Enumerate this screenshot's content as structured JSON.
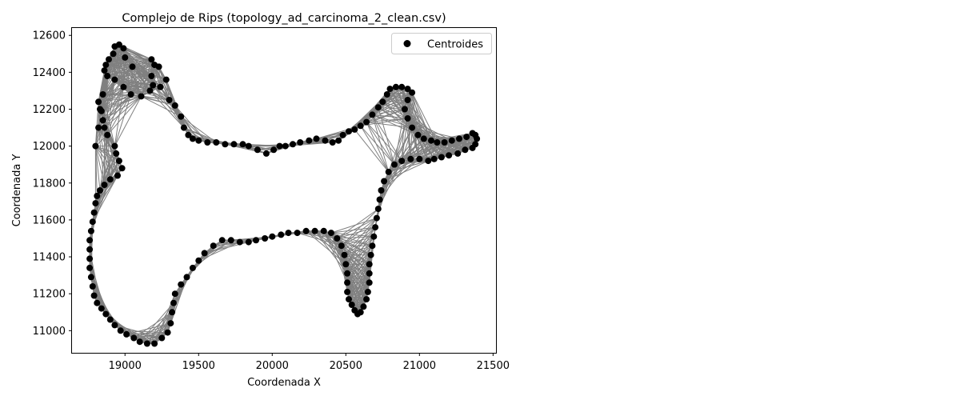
{
  "chart_data": {
    "type": "scatter",
    "title": "Complejo de Rips (topology_ad_carcinoma_2_clean.csv)",
    "xlabel": "Coordenada X",
    "ylabel": "Coordenada Y",
    "xlim": [
      18640,
      21520
    ],
    "ylim": [
      10880,
      12640
    ],
    "xticks": [
      19000,
      19500,
      20000,
      20500,
      21000,
      21500
    ],
    "yticks": [
      11000,
      11200,
      11400,
      11600,
      11800,
      12000,
      12200,
      12400,
      12600
    ],
    "grid": false,
    "legend": {
      "position": "top-right",
      "entries": [
        "Centroides"
      ]
    },
    "colors": {
      "points": "#000000",
      "edges": "#808080"
    },
    "series": [
      {
        "name": "Centroides",
        "points": [
          [
            18930,
            12540
          ],
          [
            18960,
            12550
          ],
          [
            18990,
            12530
          ],
          [
            18920,
            12500
          ],
          [
            18890,
            12470
          ],
          [
            18870,
            12440
          ],
          [
            18860,
            12410
          ],
          [
            18880,
            12380
          ],
          [
            18930,
            12360
          ],
          [
            18990,
            12320
          ],
          [
            19040,
            12280
          ],
          [
            19110,
            12270
          ],
          [
            19170,
            12300
          ],
          [
            19190,
            12330
          ],
          [
            19180,
            12380
          ],
          [
            19200,
            12440
          ],
          [
            19230,
            12430
          ],
          [
            19180,
            12470
          ],
          [
            19050,
            12430
          ],
          [
            19000,
            12480
          ],
          [
            19280,
            12360
          ],
          [
            19240,
            12320
          ],
          [
            19300,
            12250
          ],
          [
            19340,
            12220
          ],
          [
            19380,
            12160
          ],
          [
            19400,
            12100
          ],
          [
            19430,
            12060
          ],
          [
            19460,
            12040
          ],
          [
            19500,
            12030
          ],
          [
            19560,
            12020
          ],
          [
            19620,
            12020
          ],
          [
            19680,
            12010
          ],
          [
            19740,
            12010
          ],
          [
            19800,
            12010
          ],
          [
            19840,
            12000
          ],
          [
            19900,
            11980
          ],
          [
            19960,
            11960
          ],
          [
            20010,
            11980
          ],
          [
            20050,
            12000
          ],
          [
            20090,
            12000
          ],
          [
            20140,
            12010
          ],
          [
            20190,
            12020
          ],
          [
            20250,
            12030
          ],
          [
            20300,
            12040
          ],
          [
            20360,
            12030
          ],
          [
            20410,
            12020
          ],
          [
            20450,
            12030
          ],
          [
            20480,
            12060
          ],
          [
            20520,
            12080
          ],
          [
            20560,
            12090
          ],
          [
            20600,
            12110
          ],
          [
            20640,
            12130
          ],
          [
            20680,
            12170
          ],
          [
            20720,
            12210
          ],
          [
            20750,
            12240
          ],
          [
            20780,
            12280
          ],
          [
            20800,
            12310
          ],
          [
            20840,
            12320
          ],
          [
            20880,
            12320
          ],
          [
            20920,
            12310
          ],
          [
            20950,
            12290
          ],
          [
            20920,
            12250
          ],
          [
            20900,
            12200
          ],
          [
            20920,
            12150
          ],
          [
            20950,
            12100
          ],
          [
            20990,
            12060
          ],
          [
            21030,
            12040
          ],
          [
            21080,
            12030
          ],
          [
            21120,
            12020
          ],
          [
            21170,
            12020
          ],
          [
            21220,
            12030
          ],
          [
            21270,
            12040
          ],
          [
            21320,
            12050
          ],
          [
            21360,
            12070
          ],
          [
            21380,
            12060
          ],
          [
            21390,
            12040
          ],
          [
            21380,
            12010
          ],
          [
            21360,
            11990
          ],
          [
            21310,
            11980
          ],
          [
            21260,
            11960
          ],
          [
            21200,
            11950
          ],
          [
            21150,
            11940
          ],
          [
            21100,
            11930
          ],
          [
            21060,
            11920
          ],
          [
            21000,
            11930
          ],
          [
            20940,
            11930
          ],
          [
            20880,
            11920
          ],
          [
            20830,
            11900
          ],
          [
            20790,
            11860
          ],
          [
            20760,
            11810
          ],
          [
            20740,
            11760
          ],
          [
            20730,
            11710
          ],
          [
            20720,
            11660
          ],
          [
            20710,
            11610
          ],
          [
            20700,
            11560
          ],
          [
            20690,
            11510
          ],
          [
            20680,
            11460
          ],
          [
            20670,
            11410
          ],
          [
            20660,
            11360
          ],
          [
            20660,
            11310
          ],
          [
            20660,
            11260
          ],
          [
            20650,
            11210
          ],
          [
            20640,
            11170
          ],
          [
            20620,
            11130
          ],
          [
            20600,
            11100
          ],
          [
            20580,
            11090
          ],
          [
            20560,
            11110
          ],
          [
            20540,
            11140
          ],
          [
            20520,
            11170
          ],
          [
            20510,
            11210
          ],
          [
            20510,
            11260
          ],
          [
            20510,
            11310
          ],
          [
            20500,
            11360
          ],
          [
            20490,
            11410
          ],
          [
            20470,
            11460
          ],
          [
            20440,
            11500
          ],
          [
            20400,
            11530
          ],
          [
            20350,
            11540
          ],
          [
            20290,
            11540
          ],
          [
            20230,
            11540
          ],
          [
            20170,
            11530
          ],
          [
            20110,
            11530
          ],
          [
            20060,
            11520
          ],
          [
            20000,
            11510
          ],
          [
            19950,
            11500
          ],
          [
            19890,
            11490
          ],
          [
            19840,
            11480
          ],
          [
            19780,
            11480
          ],
          [
            19720,
            11490
          ],
          [
            19660,
            11490
          ],
          [
            19600,
            11460
          ],
          [
            19540,
            11420
          ],
          [
            19500,
            11380
          ],
          [
            19460,
            11340
          ],
          [
            19420,
            11290
          ],
          [
            19380,
            11250
          ],
          [
            19340,
            11200
          ],
          [
            19330,
            11150
          ],
          [
            19320,
            11100
          ],
          [
            19310,
            11040
          ],
          [
            19290,
            10990
          ],
          [
            19250,
            10960
          ],
          [
            19200,
            10930
          ],
          [
            19150,
            10930
          ],
          [
            19100,
            10940
          ],
          [
            19060,
            10960
          ],
          [
            19010,
            10980
          ],
          [
            18970,
            11000
          ],
          [
            18930,
            11030
          ],
          [
            18900,
            11060
          ],
          [
            18870,
            11090
          ],
          [
            18840,
            11120
          ],
          [
            18810,
            11150
          ],
          [
            18790,
            11190
          ],
          [
            18780,
            11240
          ],
          [
            18770,
            11290
          ],
          [
            18760,
            11340
          ],
          [
            18760,
            11390
          ],
          [
            18760,
            11440
          ],
          [
            18760,
            11490
          ],
          [
            18770,
            11540
          ],
          [
            18780,
            11590
          ],
          [
            18790,
            11640
          ],
          [
            18800,
            11690
          ],
          [
            18810,
            11730
          ],
          [
            18830,
            11760
          ],
          [
            18860,
            11790
          ],
          [
            18900,
            11820
          ],
          [
            18950,
            11840
          ],
          [
            18980,
            11880
          ],
          [
            18960,
            11920
          ],
          [
            18940,
            11960
          ],
          [
            18930,
            12000
          ],
          [
            18880,
            12060
          ],
          [
            18860,
            12100
          ],
          [
            18850,
            12140
          ],
          [
            18840,
            12190
          ],
          [
            18830,
            12200
          ],
          [
            18820,
            12240
          ],
          [
            18850,
            12280
          ],
          [
            18800,
            12000
          ],
          [
            18820,
            12100
          ]
        ]
      }
    ]
  }
}
